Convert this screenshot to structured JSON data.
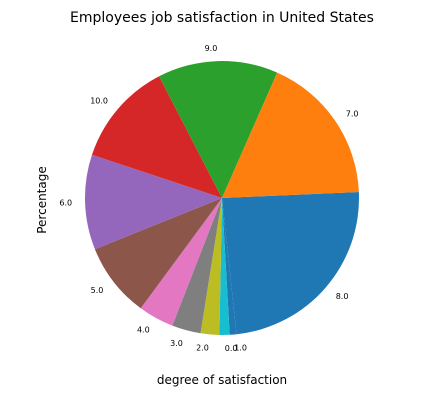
{
  "chart_data": {
    "type": "pie",
    "title": "Employees job satisfaction in United States",
    "xlabel": "degree of satisfaction",
    "ylabel": "Percentage",
    "slices": [
      {
        "label": "8.0",
        "value": 24.0,
        "color": "#1f77b4"
      },
      {
        "label": "1.0",
        "value": 0.8,
        "color": "#1f77b4"
      },
      {
        "label": "0.0",
        "value": 1.2,
        "color": "#17becf"
      },
      {
        "label": "2.0",
        "value": 2.2,
        "color": "#bcbd22"
      },
      {
        "label": "3.0",
        "value": 3.4,
        "color": "#7f7f7f"
      },
      {
        "label": "4.0",
        "value": 4.2,
        "color": "#e377c2"
      },
      {
        "label": "5.0",
        "value": 8.8,
        "color": "#8c564b"
      },
      {
        "label": "6.0",
        "value": 11.2,
        "color": "#9467bd"
      },
      {
        "label": "10.0",
        "value": 12.3,
        "color": "#d62728"
      },
      {
        "label": "9.0",
        "value": 14.2,
        "color": "#2ca02c"
      },
      {
        "label": "7.0",
        "value": 17.7,
        "color": "#ff7f0e"
      }
    ]
  }
}
